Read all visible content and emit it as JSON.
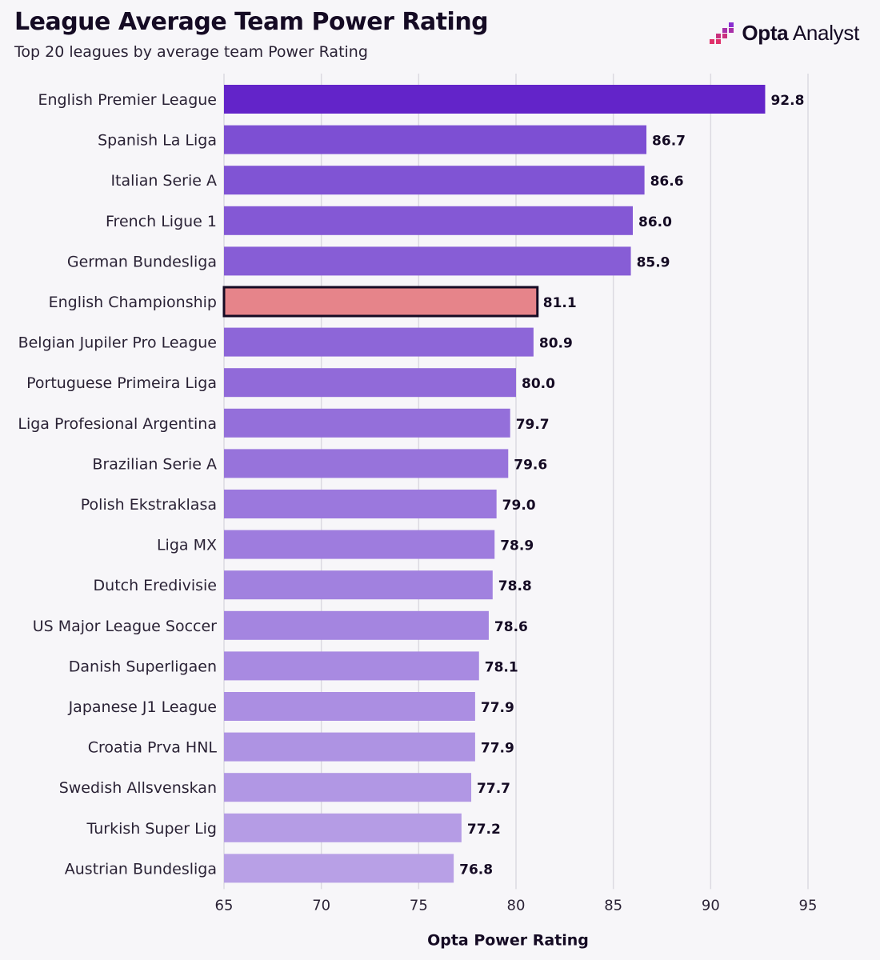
{
  "header": {
    "title": "League Average Team Power Rating",
    "subtitle": "Top 20 leagues by average team Power Rating"
  },
  "brand": {
    "logo_bold": "Opta",
    "logo_rest": " Analyst",
    "logo_icon": "opta-bars-icon",
    "logo_colors": [
      "#e0316b",
      "#8a2fd1"
    ]
  },
  "colors": {
    "top_bar": "#6324c9",
    "bar_dark": "#7d4fd3",
    "bar_light": "#b8a0e6",
    "highlight": "#e6848a",
    "highlight_border": "#150b24",
    "grid": "#dcdae1"
  },
  "chart_data": {
    "type": "bar",
    "orientation": "horizontal",
    "categories": [
      "English Premier League",
      "Spanish La Liga",
      "Italian Serie A",
      "French Ligue 1",
      "German Bundesliga",
      "English Championship",
      "Belgian Jupiler Pro League",
      "Portuguese Primeira Liga",
      "Liga Profesional Argentina",
      "Brazilian Serie A",
      "Polish Ekstraklasa",
      "Liga MX",
      "Dutch Eredivisie",
      "US Major League Soccer",
      "Danish Superligaen",
      "Japanese J1 League",
      "Croatia Prva HNL",
      "Swedish Allsvenskan",
      "Turkish Super Lig",
      "Austrian Bundesliga"
    ],
    "values": [
      92.8,
      86.7,
      86.6,
      86.0,
      85.9,
      81.1,
      80.9,
      80.0,
      79.7,
      79.6,
      79.0,
      78.9,
      78.8,
      78.6,
      78.1,
      77.9,
      77.9,
      77.7,
      77.2,
      76.8
    ],
    "value_labels": [
      "92.8",
      "86.7",
      "86.6",
      "86.0",
      "85.9",
      "81.1",
      "80.9",
      "80.0",
      "79.7",
      "79.6",
      "79.0",
      "78.9",
      "78.8",
      "78.6",
      "78.1",
      "77.9",
      "77.9",
      "77.7",
      "77.2",
      "76.8"
    ],
    "highlight": "English Championship",
    "xlabel": "Opta Power Rating",
    "xlim": [
      65,
      95
    ],
    "xticks": [
      65,
      70,
      75,
      80,
      85,
      90,
      95
    ],
    "grid": "vertical"
  }
}
